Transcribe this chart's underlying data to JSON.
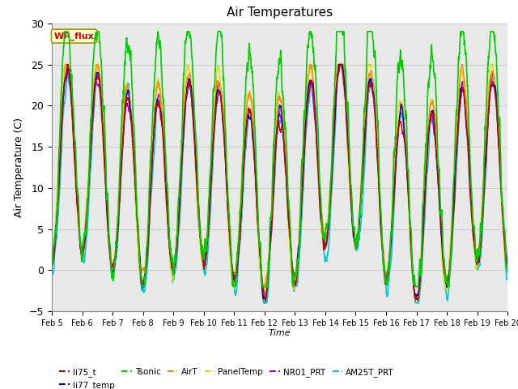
{
  "title": "Air Temperatures",
  "xlabel": "Time",
  "ylabel": "Air Temperature (C)",
  "ylim": [
    -5,
    30
  ],
  "series": {
    "li75_t": {
      "color": "#cc0000",
      "lw": 1.0
    },
    "li77_temp": {
      "color": "#0000cc",
      "lw": 1.0
    },
    "Tsonic": {
      "color": "#00cc00",
      "lw": 1.2
    },
    "AirT": {
      "color": "#ff8800",
      "lw": 1.0
    },
    "PanelTemp": {
      "color": "#dddd00",
      "lw": 1.0
    },
    "NR01_PRT": {
      "color": "#9900cc",
      "lw": 1.0
    },
    "AM25T_PRT": {
      "color": "#00cccc",
      "lw": 1.2
    }
  },
  "annotation_text": "WP_flux",
  "annotation_color": "#cc0000",
  "annotation_bg": "#ffffcc",
  "annotation_border": "#999900",
  "bg_color": "#e8e8e8",
  "n_points": 2160,
  "days": 15
}
